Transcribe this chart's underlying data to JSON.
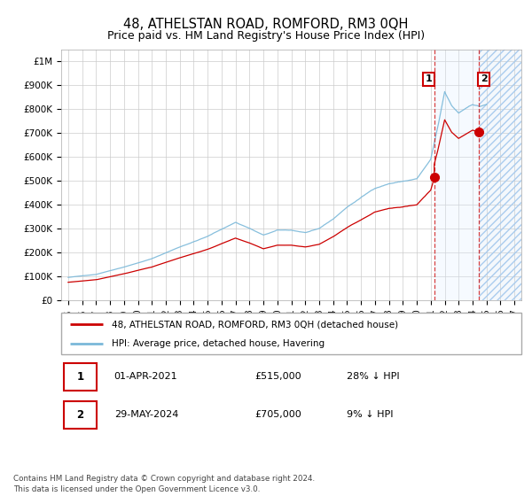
{
  "title": "48, ATHELSTAN ROAD, ROMFORD, RM3 0QH",
  "subtitle": "Price paid vs. HM Land Registry's House Price Index (HPI)",
  "title_fontsize": 10.5,
  "subtitle_fontsize": 9,
  "ylabel_ticks": [
    "£0",
    "£100K",
    "£200K",
    "£300K",
    "£400K",
    "£500K",
    "£600K",
    "£700K",
    "£800K",
    "£900K",
    "£1M"
  ],
  "ytick_values": [
    0,
    100000,
    200000,
    300000,
    400000,
    500000,
    600000,
    700000,
    800000,
    900000,
    1000000
  ],
  "ylim": [
    0,
    1050000
  ],
  "xlim_start": 1994.5,
  "xlim_end": 2027.5,
  "xtick_years": [
    1995,
    1996,
    1997,
    1998,
    1999,
    2000,
    2001,
    2002,
    2003,
    2004,
    2005,
    2006,
    2007,
    2008,
    2009,
    2010,
    2011,
    2012,
    2013,
    2014,
    2015,
    2016,
    2017,
    2018,
    2019,
    2020,
    2021,
    2022,
    2023,
    2024,
    2025,
    2026,
    2027
  ],
  "hpi_color": "#7ab8d9",
  "price_color": "#cc0000",
  "sale1_date_x": 2021.25,
  "sale1_price": 515000,
  "sale2_date_x": 2024.42,
  "sale2_price": 705000,
  "sale1_label": "1",
  "sale2_label": "2",
  "vline_color": "#cc0000",
  "highlight_color": "#ddeeff",
  "hatch_color": "#c6dbef",
  "hatch_start": 2024.42,
  "legend_line1": "48, ATHELSTAN ROAD, ROMFORD, RM3 0QH (detached house)",
  "legend_line2": "HPI: Average price, detached house, Havering",
  "table_row1": [
    "1",
    "01-APR-2021",
    "£515,000",
    "28% ↓ HPI"
  ],
  "table_row2": [
    "2",
    "29-MAY-2024",
    "£705,000",
    "9% ↓ HPI"
  ],
  "footer_text": "Contains HM Land Registry data © Crown copyright and database right 2024.\nThis data is licensed under the Open Government Licence v3.0.",
  "background_color": "#ffffff",
  "grid_color": "#cccccc"
}
